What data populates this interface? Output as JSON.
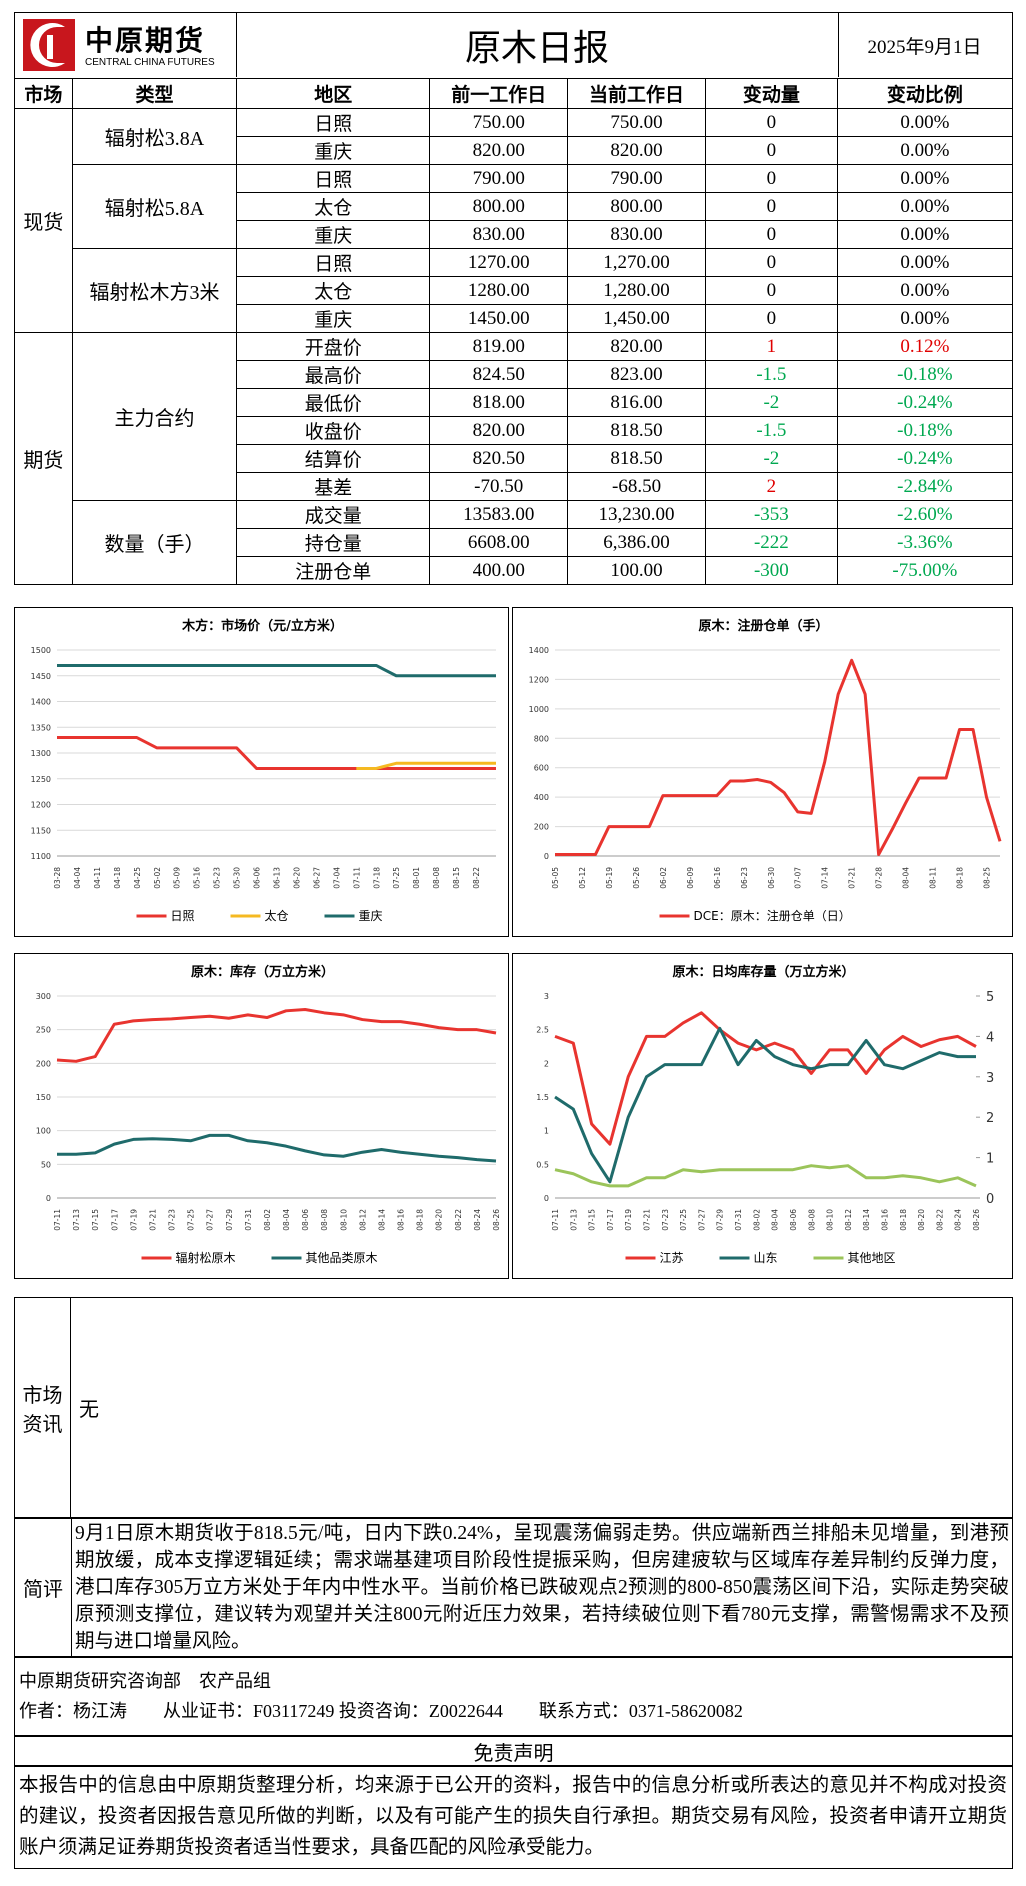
{
  "header": {
    "logo_text": "中原期货",
    "logo_sub": "CENTRAL CHINA FUTURES",
    "title": "原木日报",
    "date": "2025年9月1日"
  },
  "table": {
    "headers": [
      "市场",
      "类型",
      "地区",
      "前一工作日",
      "当前工作日",
      "变动量",
      "变动比例"
    ],
    "sections": [
      {
        "market": "现货",
        "groups": [
          {
            "type": "辐射松3.8A",
            "rows": [
              [
                "日照",
                "750.00",
                "750.00",
                "0",
                "0.00%"
              ],
              [
                "重庆",
                "820.00",
                "820.00",
                "0",
                "0.00%"
              ]
            ]
          },
          {
            "type": "辐射松5.8A",
            "rows": [
              [
                "日照",
                "790.00",
                "790.00",
                "0",
                "0.00%"
              ],
              [
                "太仓",
                "800.00",
                "800.00",
                "0",
                "0.00%"
              ],
              [
                "重庆",
                "830.00",
                "830.00",
                "0",
                "0.00%"
              ]
            ]
          },
          {
            "type": "辐射松木方3米",
            "rows": [
              [
                "日照",
                "1270.00",
                "1,270.00",
                "0",
                "0.00%"
              ],
              [
                "太仓",
                "1280.00",
                "1,280.00",
                "0",
                "0.00%"
              ],
              [
                "重庆",
                "1450.00",
                "1,450.00",
                "0",
                "0.00%"
              ]
            ]
          }
        ]
      },
      {
        "market": "期货",
        "groups": [
          {
            "type": "主力合约",
            "rows": [
              [
                "开盘价",
                "819.00",
                "820.00",
                "1",
                "0.12%"
              ],
              [
                "最高价",
                "824.50",
                "823.00",
                "-1.5",
                "-0.18%"
              ],
              [
                "最低价",
                "818.00",
                "816.00",
                "-2",
                "-0.24%"
              ],
              [
                "收盘价",
                "820.00",
                "818.50",
                "-1.5",
                "-0.18%"
              ],
              [
                "结算价",
                "820.50",
                "818.50",
                "-2",
                "-0.24%"
              ],
              [
                "基差",
                "-70.50",
                "-68.50",
                "2",
                "-2.84%"
              ]
            ]
          },
          {
            "type": "数量（手）",
            "rows": [
              [
                "成交量",
                "13583.00",
                "13,230.00",
                "-353",
                "-2.60%"
              ],
              [
                "持仓量",
                "6608.00",
                "6,386.00",
                "-222",
                "-3.36%"
              ],
              [
                "注册仓单",
                "400.00",
                "100.00",
                "-300",
                "-75.00%"
              ]
            ]
          }
        ]
      }
    ]
  },
  "chart_data": [
    {
      "type": "line",
      "title": "木方：市场价（元/立方米）",
      "categories": [
        "03-28",
        "04-04",
        "04-11",
        "04-18",
        "04-25",
        "05-02",
        "05-09",
        "05-16",
        "05-23",
        "05-30",
        "06-06",
        "06-13",
        "06-20",
        "06-27",
        "07-04",
        "07-11",
        "07-18",
        "07-25",
        "08-01",
        "08-08",
        "08-15",
        "08-22",
        null
      ],
      "series": [
        {
          "name": "日照",
          "color": "#e8342f",
          "values": [
            1330,
            1330,
            1330,
            1330,
            1330,
            1310,
            1310,
            1310,
            1310,
            1310,
            1270,
            1270,
            1270,
            1270,
            1270,
            1270,
            1270,
            1270,
            1270,
            1270,
            1270,
            1270,
            1270
          ]
        },
        {
          "name": "太仓",
          "color": "#f5b921",
          "values": [
            null,
            null,
            null,
            null,
            null,
            null,
            null,
            null,
            null,
            null,
            null,
            null,
            null,
            null,
            null,
            1270,
            1270,
            1280,
            1280,
            1280,
            1280,
            1280,
            1280
          ]
        },
        {
          "name": "重庆",
          "color": "#1f6b6b",
          "values": [
            1470,
            1470,
            1470,
            1470,
            1470,
            1470,
            1470,
            1470,
            1470,
            1470,
            1470,
            1470,
            1470,
            1470,
            1470,
            1470,
            1470,
            1450,
            1450,
            1450,
            1450,
            1450,
            1450
          ]
        }
      ],
      "ylim": [
        1100,
        1500
      ],
      "yticks": [
        1100,
        1150,
        1200,
        1250,
        1300,
        1350,
        1400,
        1450,
        1500
      ],
      "grid": true
    },
    {
      "type": "line",
      "title": "原木：注册仓单（手）",
      "categories": [
        "05-05",
        null,
        "05-12",
        null,
        "05-19",
        null,
        "05-26",
        null,
        "06-02",
        null,
        "06-09",
        null,
        "06-16",
        null,
        "06-23",
        null,
        "06-30",
        null,
        "07-07",
        null,
        "07-14",
        null,
        "07-21",
        null,
        "07-28",
        null,
        "08-04",
        null,
        "08-11",
        null,
        "08-18",
        null,
        "08-25",
        null
      ],
      "series": [
        {
          "name": "DCE：原木：注册仓单（日）",
          "color": "#e8342f",
          "values": [
            10,
            10,
            10,
            10,
            200,
            200,
            200,
            200,
            410,
            410,
            410,
            410,
            410,
            510,
            510,
            520,
            500,
            430,
            300,
            290,
            640,
            1100,
            1330,
            1100,
            10,
            180,
            360,
            530,
            530,
            530,
            860,
            860,
            400,
            100
          ]
        }
      ],
      "ylim": [
        0,
        1400
      ],
      "yticks": [
        0,
        200,
        400,
        600,
        800,
        1000,
        1200,
        1400
      ],
      "grid": true
    },
    {
      "type": "line",
      "title": "原木：库存（万立方米）",
      "categories": [
        "07-11",
        "07-13",
        "07-15",
        "07-17",
        "07-19",
        "07-21",
        "07-23",
        "07-25",
        "07-27",
        "07-29",
        "07-31",
        "08-02",
        "08-04",
        "08-06",
        "08-08",
        "08-10",
        "08-12",
        "08-14",
        "08-16",
        "08-18",
        "08-20",
        "08-22",
        "08-24",
        "08-26"
      ],
      "series": [
        {
          "name": "辐射松原木",
          "color": "#e8342f",
          "values": [
            205,
            203,
            210,
            258,
            263,
            265,
            266,
            268,
            270,
            267,
            272,
            268,
            278,
            280,
            275,
            272,
            265,
            262,
            262,
            258,
            253,
            250,
            250,
            245
          ]
        },
        {
          "name": "其他品类原木",
          "color": "#1f6b6b",
          "values": [
            65,
            65,
            67,
            80,
            87,
            88,
            87,
            85,
            93,
            93,
            85,
            82,
            77,
            70,
            64,
            62,
            68,
            72,
            68,
            65,
            62,
            60,
            57,
            55
          ]
        }
      ],
      "ylim": [
        0,
        300
      ],
      "yticks": [
        0,
        50,
        100,
        150,
        200,
        250,
        300
      ],
      "grid": true
    },
    {
      "type": "line",
      "title": "原木：日均库存量（万立方米）",
      "categories": [
        "07-11",
        "07-13",
        "07-15",
        "07-17",
        "07-19",
        "07-21",
        "07-23",
        "07-25",
        "07-27",
        "07-29",
        "07-31",
        "08-02",
        "08-04",
        "08-06",
        "08-08",
        "08-10",
        "08-12",
        "08-14",
        "08-16",
        "08-18",
        "08-20",
        "08-22",
        "08-24",
        "08-26"
      ],
      "series": [
        {
          "name": "江苏",
          "color": "#e8342f",
          "values": [
            2.4,
            2.3,
            1.1,
            0.8,
            1.8,
            2.4,
            2.4,
            2.6,
            2.75,
            2.5,
            2.3,
            2.2,
            2.3,
            2.2,
            1.85,
            2.2,
            2.2,
            1.85,
            2.2,
            2.4,
            2.25,
            2.35,
            2.4,
            2.25
          ]
        },
        {
          "name": "山东",
          "color": "#1f6b6b",
          "axis": "y2",
          "values": [
            2.5,
            2.2,
            1.1,
            0.4,
            2.0,
            3.0,
            3.3,
            3.3,
            3.3,
            4.2,
            3.3,
            3.9,
            3.5,
            3.3,
            3.2,
            3.3,
            3.3,
            3.9,
            3.3,
            3.2,
            3.4,
            3.6,
            3.5,
            3.5
          ]
        },
        {
          "name": "其他地区",
          "color": "#9bc45a",
          "axis": "y2",
          "values": [
            0.7,
            0.6,
            0.4,
            0.3,
            0.3,
            0.5,
            0.5,
            0.7,
            0.65,
            0.7,
            0.7,
            0.7,
            0.7,
            0.7,
            0.8,
            0.75,
            0.8,
            0.5,
            0.5,
            0.55,
            0.5,
            0.4,
            0.5,
            0.3
          ]
        }
      ],
      "ylim": [
        0,
        3
      ],
      "yticks": [
        0,
        0.5,
        1,
        1.5,
        2,
        2.5,
        3
      ],
      "y2lim": [
        0,
        5
      ],
      "y2ticks": [
        0,
        1,
        2,
        3,
        4,
        5
      ],
      "grid": false
    }
  ],
  "market_info": {
    "label": "市场资讯",
    "text": "无"
  },
  "review": {
    "label": "简评",
    "text": "9月1日原木期货收于818.5元/吨，日内下跌0.24%，呈现震荡偏弱走势。供应端新西兰排船未见增量，到港预期放缓，成本支撑逻辑延续；需求端基建项目阶段性提振采购，但房建疲软与区域库存差异制约反弹力度，港口库存305万立方米处于年内中性水平。当前价格已跌破观点2预测的800-850震荡区间下沿，实际走势突破原预测支撑位，建议转为观望并关注800元附近压力效果，若持续破位则下看780元支撑，需警惕需求不及预期与进口增量风险。"
  },
  "footer": {
    "line1": "中原期货研究咨询部　农产品组",
    "line2": "作者：杨江涛　　从业证书：F03117249 投资咨询：Z0022644　　联系方式：0371-58620082"
  },
  "disclaimer": {
    "title": "免责声明",
    "text": "本报告中的信息由中原期货整理分析，均来源于已公开的资料，报告中的信息分析或所表达的意见并不构成对投资的建议，投资者因报告意见所做的判断，以及有可能产生的损失自行承担。期货交易有风险，投资者申请开立期货账户须满足证券期货投资者适当性要求，具备匹配的风险承受能力。"
  }
}
